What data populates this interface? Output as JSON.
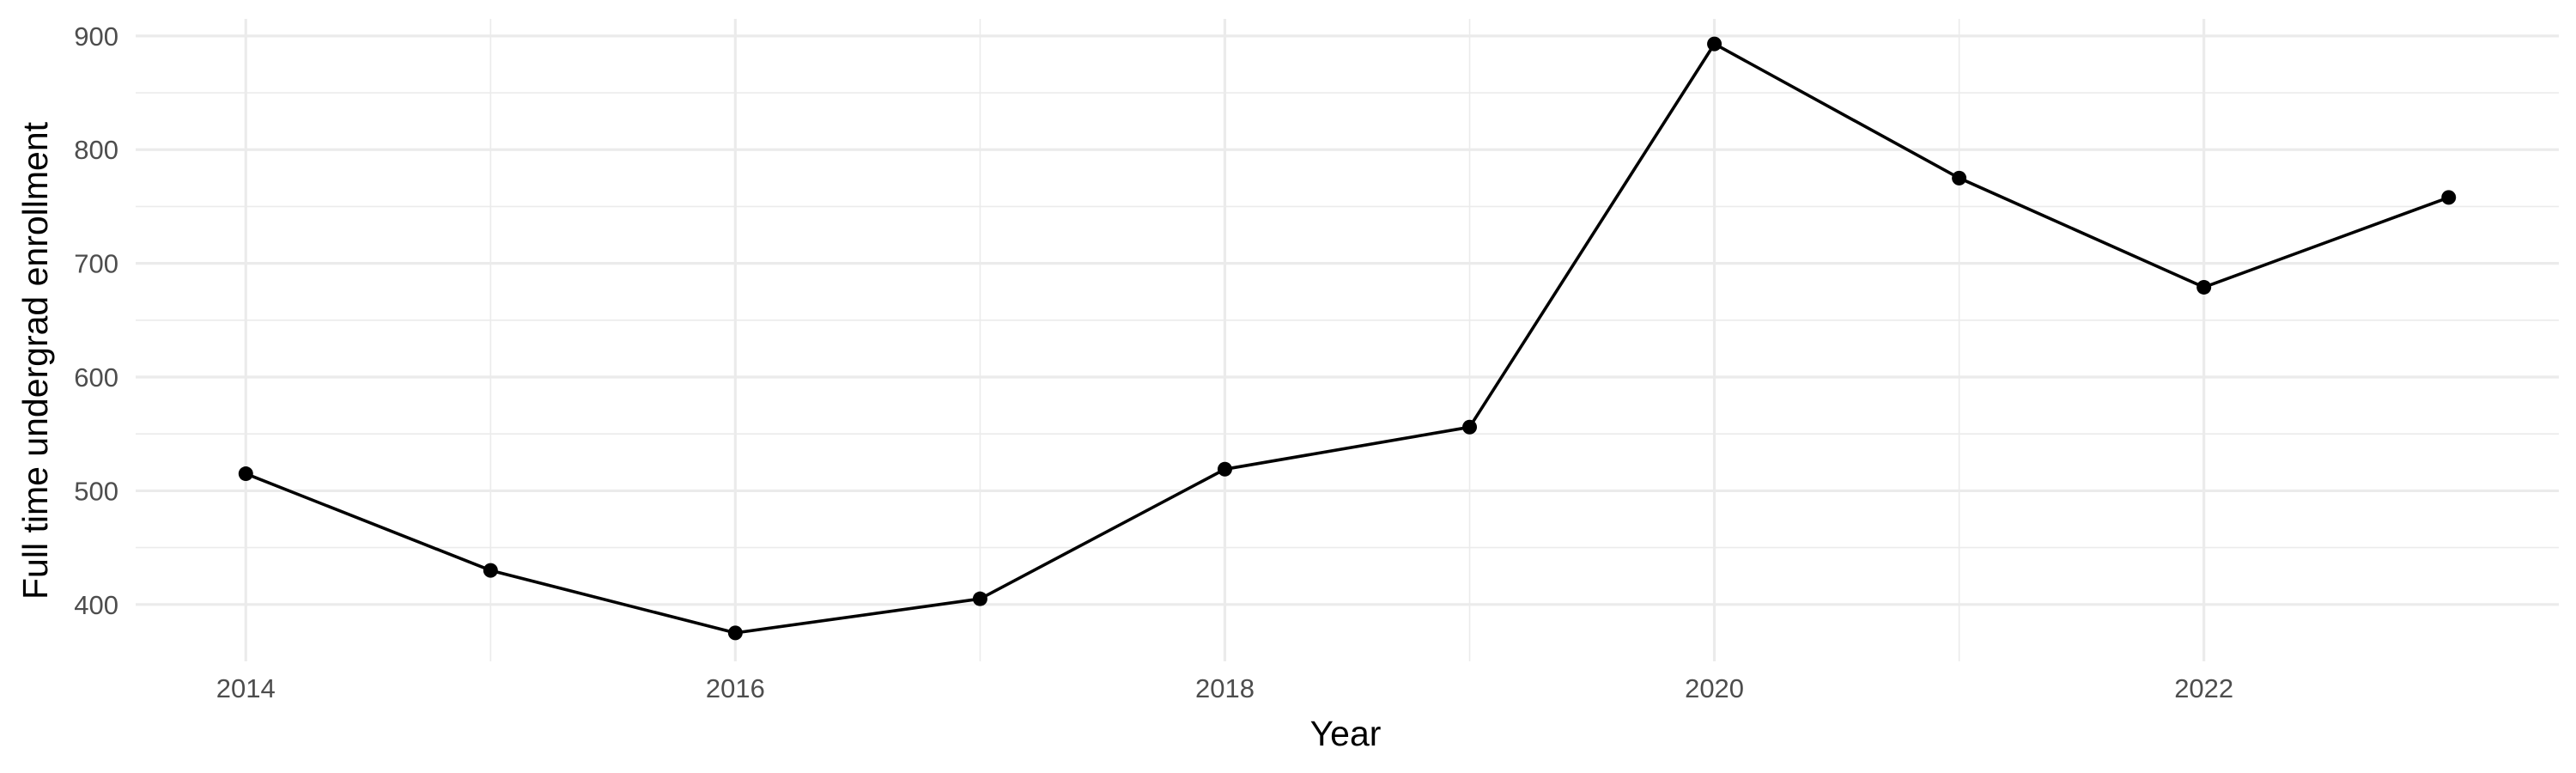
{
  "chart_data": {
    "type": "line",
    "title": "",
    "xlabel": "Year",
    "ylabel": "Full time undergrad enrollment",
    "x": [
      2014,
      2015,
      2016,
      2017,
      2018,
      2019,
      2020,
      2021,
      2022,
      2023
    ],
    "y": [
      515,
      430,
      375,
      405,
      519,
      556,
      893,
      775,
      679,
      758
    ],
    "xlim": [
      2013.55,
      2023.45
    ],
    "ylim": [
      350,
      915
    ],
    "x_ticks": [
      2014,
      2016,
      2018,
      2020,
      2022
    ],
    "x_tick_labels": [
      "2014",
      "2016",
      "2018",
      "2020",
      "2022"
    ],
    "y_ticks": [
      400,
      500,
      600,
      700,
      800,
      900
    ],
    "y_tick_labels": [
      "400",
      "500",
      "600",
      "700",
      "800",
      "900"
    ],
    "grid": true,
    "legend": false,
    "line_color": "#000000",
    "grid_color": "#ebebeb"
  }
}
